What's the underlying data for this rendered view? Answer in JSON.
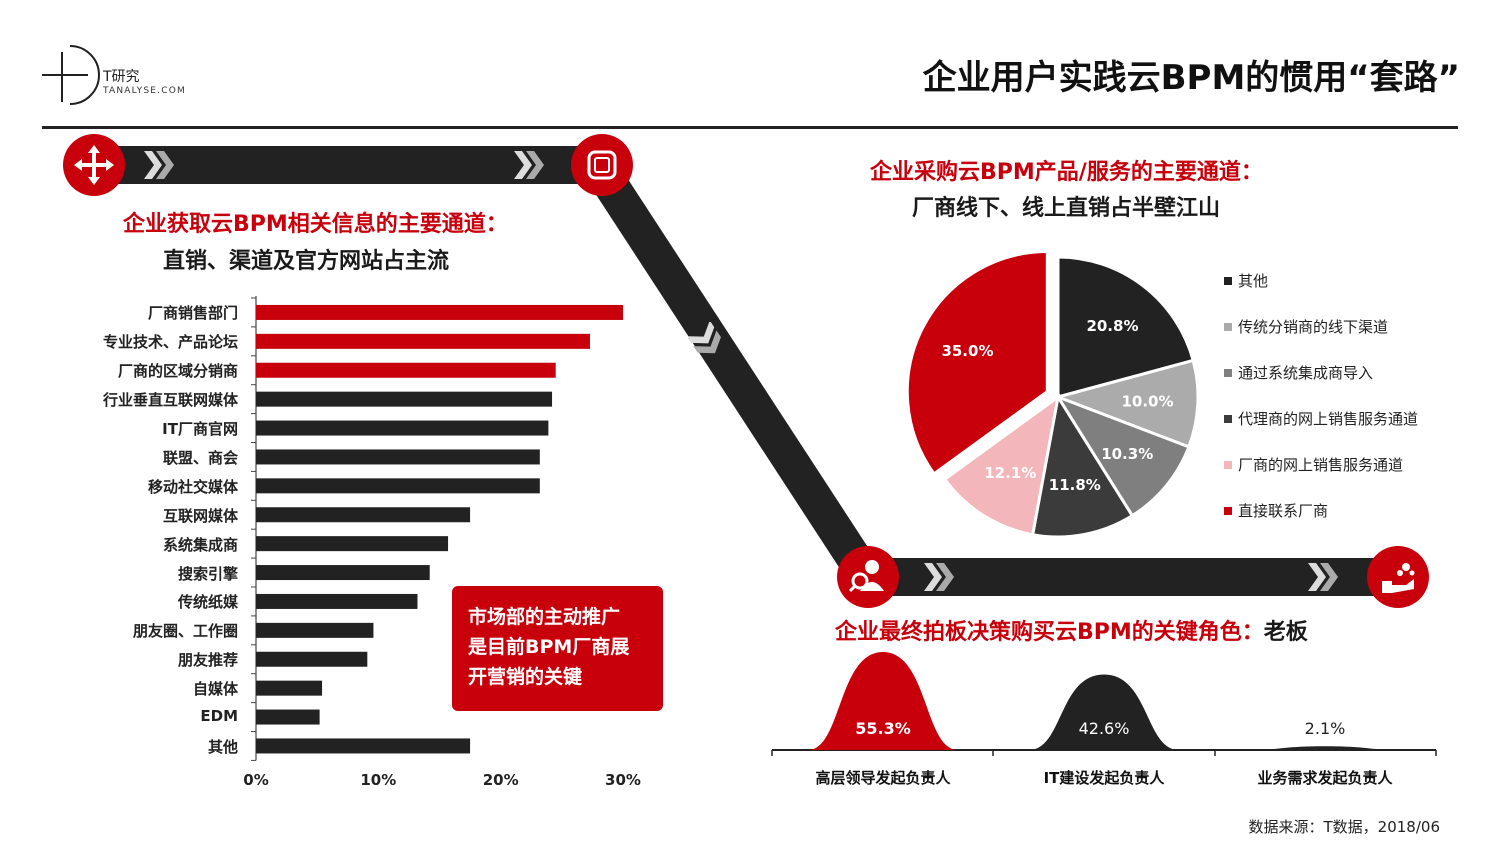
{
  "brand": {
    "name_cn": "T研究",
    "domain": "TANALYSE.COM"
  },
  "title": "企业用户实践云BPM的惯用“套路”",
  "left_section": {
    "subtitle_red": "企业获取云BPM相关信息的主要通道：",
    "subtitle_black": "直销、渠道及官方网站占主流"
  },
  "callout": {
    "lines": [
      "市场部的主动推广",
      "是目前BPM厂商展",
      "开营销的关键"
    ]
  },
  "pie_section": {
    "subtitle_red": "企业采购云BPM产品/服务的主要通道：",
    "subtitle_black": "厂商线下、线上直销占半壁江山"
  },
  "decision_section": {
    "subtitle_red": "企业最终拍板决策购买云BPM的关键角色：",
    "subtitle_black": "老板"
  },
  "source": "数据来源：T数据，2018/06",
  "colors": {
    "brand_red": "#c8000b",
    "dark": "#222222",
    "pink": "#f3b7bb",
    "grey_mid": "#7f7f7f",
    "grey_light": "#ababab",
    "grey_dark": "#3b3b3b"
  },
  "chart_data": [
    {
      "type": "bar",
      "orientation": "horizontal",
      "categories": [
        "厂商销售部门",
        "专业技术、产品论坛",
        "厂商的区域分销商",
        "行业垂直互联网媒体",
        "IT厂商官网",
        "联盟、商会",
        "移动社交媒体",
        "互联网媒体",
        "系统集成商",
        "搜索引擎",
        "传统纸媒",
        "朋友圈、工作圈",
        "朋友推荐",
        "自媒体",
        "EDM",
        "其他"
      ],
      "values": [
        30.0,
        27.3,
        24.5,
        24.2,
        23.9,
        23.2,
        23.2,
        17.5,
        15.7,
        14.2,
        13.2,
        9.6,
        9.1,
        5.4,
        5.2,
        17.5
      ],
      "highlight": [
        true,
        true,
        true,
        false,
        false,
        false,
        false,
        false,
        false,
        false,
        false,
        false,
        false,
        false,
        false,
        false
      ],
      "xlim": [
        0,
        30
      ],
      "ticks": [
        0,
        10,
        20,
        30
      ],
      "tick_labels": [
        "0%",
        "10%",
        "20%",
        "30%"
      ]
    },
    {
      "type": "pie",
      "labels": [
        "其他",
        "传统分销商的线下渠道",
        "通过系统集成商导入",
        "代理商的网上销售服务通道",
        "厂商的网上销售服务通道",
        "直接联系厂商"
      ],
      "values": [
        20.8,
        10.0,
        10.3,
        11.8,
        12.1,
        35.0
      ],
      "value_labels": [
        "20.8%",
        "10.0%",
        "10.3%",
        "11.8%",
        "12.1%",
        "35.0%"
      ],
      "colors": [
        "#222222",
        "#ababab",
        "#7f7f7f",
        "#3b3b3b",
        "#f3b7bb",
        "#c8000b"
      ],
      "exploded": "直接联系厂商",
      "legend_position": "right"
    },
    {
      "type": "area",
      "categories": [
        "高层领导发起负责人",
        "IT建设发起负责人",
        "业务需求发起负责人"
      ],
      "values": [
        55.3,
        42.6,
        2.1
      ],
      "value_labels": [
        "55.3%",
        "42.6%",
        "2.1%"
      ],
      "colors": [
        "#c8000b",
        "#222222",
        "#222222"
      ]
    }
  ]
}
